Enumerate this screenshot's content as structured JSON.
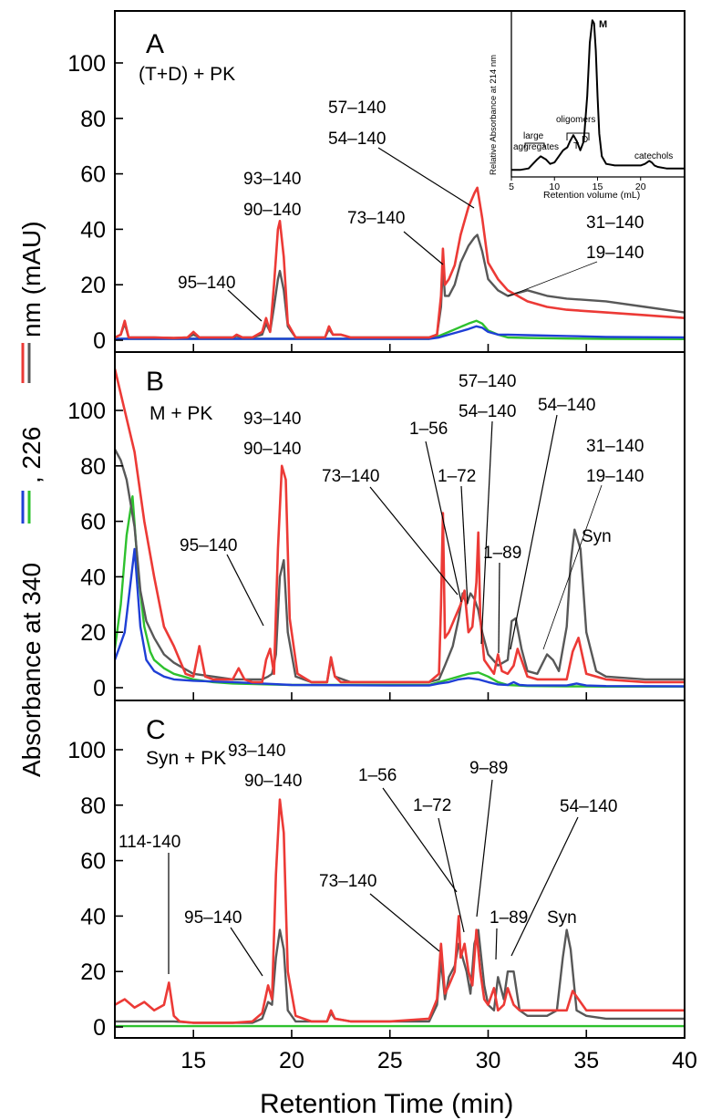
{
  "figure": {
    "ylabel_parts": [
      "Absorbance at 340",
      ", 226",
      " nm (mAU)"
    ],
    "xlabel": "Retention Time (min)",
    "colors": {
      "red": "#ec3a36",
      "black": "#585858",
      "blue": "#1f3fd6",
      "green": "#2ec12e"
    }
  },
  "chart_data": [
    {
      "type": "line",
      "panel": "A",
      "title": "(T+D) + PK",
      "xlim": [
        11,
        40
      ],
      "ylim": [
        0,
        115
      ],
      "xticks": [
        15,
        20,
        25,
        30,
        35,
        40
      ],
      "yticks": [
        0,
        20,
        40,
        60,
        80,
        100
      ],
      "series": [
        {
          "color": "red",
          "x": [
            11,
            11.3,
            11.5,
            11.7,
            12,
            13,
            14,
            14.7,
            15,
            15.3,
            16,
            17,
            17.2,
            17.5,
            18,
            18.5,
            18.7,
            18.9,
            19.1,
            19.3,
            19.4,
            19.6,
            19.8,
            20.2,
            21,
            21.7,
            21.9,
            22.1,
            22.5,
            23,
            25,
            27,
            27.4,
            27.6,
            27.7,
            27.8,
            28,
            28.3,
            28.6,
            29,
            29.3,
            29.45,
            29.7,
            30,
            30.5,
            31,
            31.5,
            32,
            33,
            34,
            36,
            38,
            40
          ],
          "y": [
            1,
            2,
            7,
            1,
            1,
            1,
            0.8,
            1,
            3,
            1,
            1,
            1,
            2,
            1,
            1,
            3,
            8,
            3,
            20,
            40,
            43,
            30,
            6,
            1,
            1,
            1,
            5,
            2,
            2,
            1,
            1,
            1,
            2,
            16,
            33,
            20,
            22,
            27,
            38,
            48,
            53,
            55,
            44,
            28,
            22,
            18,
            16,
            14,
            12,
            11,
            10,
            9,
            8
          ]
        },
        {
          "color": "black",
          "x": [
            11,
            11.3,
            11.5,
            11.7,
            12,
            13,
            14,
            14.7,
            15,
            15.3,
            16,
            17,
            17.2,
            17.5,
            18,
            18.5,
            18.7,
            18.9,
            19.1,
            19.3,
            19.4,
            19.6,
            19.8,
            20.2,
            21,
            21.7,
            21.9,
            22.1,
            22.5,
            23,
            25,
            27,
            27.4,
            27.6,
            27.7,
            27.8,
            28,
            28.3,
            28.6,
            29,
            29.3,
            29.45,
            29.7,
            30,
            30.5,
            31,
            31.5,
            32,
            33,
            34,
            36,
            38,
            40
          ],
          "y": [
            1,
            2,
            6,
            1,
            1,
            1,
            0.8,
            1,
            2,
            1,
            1,
            1,
            1.5,
            1,
            1,
            2,
            6,
            3,
            12,
            22,
            25,
            18,
            5,
            1,
            1,
            1,
            4,
            2,
            2,
            1,
            1,
            1,
            2,
            12,
            27,
            16,
            16,
            20,
            28,
            34,
            37,
            38,
            32,
            22,
            18,
            16,
            17,
            18,
            16,
            15,
            14,
            12,
            10
          ]
        },
        {
          "color": "blue",
          "x": [
            11,
            15,
            20,
            25,
            27,
            27.5,
            28,
            28.5,
            29,
            29.4,
            29.7,
            30,
            30.5,
            31,
            32,
            34,
            36,
            40
          ],
          "y": [
            0.5,
            0.5,
            0.5,
            0.5,
            0.5,
            1,
            2,
            3,
            4,
            5,
            4.5,
            3,
            2,
            2,
            1.8,
            1.5,
            1.2,
            1
          ]
        },
        {
          "color": "green",
          "x": [
            11,
            15,
            20,
            25,
            27,
            27.5,
            28,
            28.5,
            29,
            29.4,
            29.7,
            30,
            30.5,
            31,
            32,
            34,
            36,
            40
          ],
          "y": [
            0.5,
            0.5,
            0.5,
            0.5,
            0.5,
            1.5,
            3,
            4.5,
            6,
            7,
            6,
            3.5,
            2,
            1,
            0.8,
            0.6,
            0.5,
            0.4
          ]
        }
      ],
      "annotations": [
        "95–140",
        "93–140",
        "90–140",
        "73–140",
        "57–140",
        "54–140",
        "31–140",
        "19–140"
      ],
      "inset": {
        "ylabel": "Relative Absorbance at 214 nm",
        "xlabel": "Retention volume (mL)",
        "xlim": [
          5,
          25
        ],
        "ylim": [
          0,
          1.05
        ],
        "xticks": [
          5,
          10,
          15,
          20
        ],
        "labels": {
          "monomer": "M",
          "oligomers": "oligomers",
          "large": "large",
          "aggregates": "aggregates",
          "trimer": "T",
          "dimer": "D",
          "catechols": "catechols"
        },
        "series": [
          {
            "x": [
              5,
              6,
              7,
              7.5,
              8,
              8.4,
              9,
              9.5,
              10,
              10.5,
              11,
              11.5,
              11.8,
              12.2,
              12.6,
              13,
              13.4,
              13.8,
              14.1,
              14.4,
              14.6,
              14.8,
              15,
              15.2,
              15.5,
              16,
              17,
              18,
              19,
              20,
              20.5,
              21,
              21.3,
              21.6,
              22,
              23,
              25
            ],
            "y": [
              0.01,
              0.01,
              0.02,
              0.05,
              0.08,
              0.1,
              0.08,
              0.05,
              0.06,
              0.1,
              0.14,
              0.16,
              0.2,
              0.24,
              0.2,
              0.14,
              0.2,
              0.5,
              0.85,
              1.0,
              0.98,
              0.8,
              0.5,
              0.25,
              0.1,
              0.05,
              0.04,
              0.04,
              0.04,
              0.04,
              0.05,
              0.07,
              0.06,
              0.04,
              0.03,
              0.02,
              0.02
            ]
          }
        ]
      }
    },
    {
      "type": "line",
      "panel": "B",
      "title": "M + PK",
      "xlim": [
        11,
        40
      ],
      "ylim": [
        0,
        115
      ],
      "yticks": [
        0,
        20,
        40,
        60,
        80,
        100
      ],
      "series": [
        {
          "color": "red",
          "x": [
            11,
            11.5,
            12,
            12.5,
            13,
            13.5,
            14,
            14.3,
            14.6,
            15,
            15.3,
            15.6,
            16,
            17,
            17.3,
            17.6,
            18,
            18.5,
            18.7,
            18.9,
            19.1,
            19.3,
            19.5,
            19.7,
            19.9,
            20.3,
            21,
            21.8,
            22,
            22.2,
            22.5,
            23,
            25,
            27,
            27.5,
            27.6,
            27.7,
            27.8,
            28,
            28.3,
            28.6,
            28.8,
            29,
            29.2,
            29.4,
            29.5,
            29.6,
            29.8,
            30,
            30.3,
            30.5,
            30.7,
            31,
            31.3,
            31.5,
            31.8,
            32,
            32.5,
            33,
            33.5,
            34,
            34.3,
            34.6,
            35,
            36,
            38,
            40
          ],
          "y": [
            115,
            100,
            85,
            60,
            40,
            22,
            15,
            10,
            5,
            4,
            15,
            4,
            3,
            3,
            7,
            3,
            2,
            2,
            10,
            14,
            5,
            50,
            80,
            75,
            25,
            5,
            2,
            2,
            11,
            4,
            2,
            2,
            2,
            2,
            5,
            30,
            63,
            18,
            20,
            25,
            30,
            35,
            20,
            22,
            38,
            56,
            25,
            10,
            8,
            5,
            12,
            6,
            5,
            8,
            14,
            8,
            4,
            3,
            3,
            3,
            3,
            13,
            18,
            5,
            3,
            2,
            2
          ]
        },
        {
          "color": "black",
          "x": [
            11,
            11.3,
            11.6,
            12,
            12.3,
            12.6,
            13,
            13.5,
            14,
            14.5,
            15,
            16,
            17,
            18,
            18.5,
            18.8,
            19,
            19.2,
            19.4,
            19.6,
            19.8,
            20.2,
            21,
            21.8,
            22,
            22.2,
            23,
            25,
            27,
            27.5,
            27.8,
            28.2,
            28.5,
            28.7,
            28.9,
            29.1,
            29.3,
            29.5,
            29.7,
            30,
            30.5,
            31,
            31.2,
            31.4,
            31.7,
            32,
            32.5,
            33,
            33.3,
            33.6,
            34,
            34.2,
            34.4,
            34.7,
            35,
            35.5,
            36,
            38,
            40
          ],
          "y": [
            86,
            82,
            75,
            58,
            35,
            24,
            18,
            12,
            9,
            7,
            5,
            4,
            3,
            3,
            3,
            4,
            5,
            12,
            40,
            46,
            20,
            4,
            2,
            2,
            10,
            4,
            2,
            2,
            2,
            3,
            8,
            15,
            25,
            34,
            30,
            34,
            32,
            28,
            20,
            12,
            8,
            10,
            24,
            25,
            14,
            6,
            5,
            12,
            10,
            6,
            22,
            45,
            57,
            50,
            20,
            6,
            4,
            3,
            3
          ]
        },
        {
          "color": "blue",
          "x": [
            11,
            11.5,
            12,
            12.3,
            12.6,
            13,
            13.5,
            14,
            15,
            17,
            20,
            25,
            27,
            27.5,
            28,
            28.5,
            29,
            29.5,
            30,
            30.5,
            31,
            31.3,
            31.6,
            32,
            33,
            34,
            34.5,
            35,
            36,
            40
          ],
          "y": [
            10,
            20,
            50,
            22,
            10,
            6,
            4,
            3,
            2.5,
            2,
            1,
            0.8,
            0.8,
            1.5,
            2,
            3,
            3.5,
            3,
            2,
            1.2,
            1,
            2,
            1,
            0.8,
            0.8,
            0.8,
            1.5,
            0.8,
            0.6,
            0.5
          ]
        },
        {
          "color": "green",
          "x": [
            11,
            11.3,
            11.6,
            11.9,
            12.2,
            12.5,
            12.8,
            13,
            13.5,
            14,
            14.5,
            15,
            16,
            17,
            20,
            25,
            27,
            27.5,
            28,
            28.5,
            29,
            29.5,
            30,
            30.5,
            31,
            31.5,
            32,
            34,
            36,
            40
          ],
          "y": [
            14,
            30,
            55,
            69,
            40,
            22,
            13,
            10,
            7,
            5,
            4,
            3,
            2,
            1.5,
            1,
            1,
            1,
            2,
            3,
            4,
            5,
            5.5,
            4,
            2,
            1,
            0.8,
            0.6,
            0.5,
            0.4,
            0.4
          ]
        }
      ],
      "annotations": [
        "93–140",
        "90–140",
        "95–140",
        "1–56",
        "73–140",
        "1–72",
        "57–140",
        "54–140",
        "54–140",
        "31–140",
        "19–140",
        "1–89",
        "Syn"
      ]
    },
    {
      "type": "line",
      "panel": "C",
      "title": "Syn + PK",
      "xlim": [
        11,
        40
      ],
      "ylim": [
        0,
        115
      ],
      "xticks": [
        15,
        20,
        25,
        30,
        35,
        40
      ],
      "yticks": [
        0,
        20,
        40,
        60,
        80,
        100
      ],
      "series": [
        {
          "color": "red",
          "x": [
            11,
            11.5,
            12,
            12.5,
            13,
            13.5,
            13.75,
            14,
            14.3,
            15,
            16,
            17,
            18,
            18.5,
            18.8,
            19,
            19.2,
            19.4,
            19.6,
            19.8,
            20.2,
            21,
            21.8,
            22,
            22.2,
            23,
            25,
            27,
            27.4,
            27.6,
            27.8,
            28,
            28.3,
            28.5,
            28.6,
            28.8,
            29,
            29.2,
            29.4,
            29.6,
            29.8,
            30,
            30.3,
            30.5,
            30.8,
            31,
            31.3,
            31.6,
            32,
            33,
            34,
            34.3,
            34.6,
            35,
            36,
            38,
            40
          ],
          "y": [
            8,
            10,
            7,
            9,
            6,
            8,
            16,
            4,
            2,
            1.5,
            1.5,
            1.5,
            2,
            5,
            15,
            10,
            55,
            82,
            70,
            20,
            4,
            2,
            2,
            6,
            3,
            2,
            2,
            3,
            10,
            30,
            12,
            15,
            20,
            40,
            25,
            30,
            20,
            15,
            35,
            20,
            10,
            8,
            14,
            6,
            8,
            14,
            8,
            6,
            6,
            6,
            6,
            13,
            10,
            6,
            6,
            6,
            6
          ]
        },
        {
          "color": "black",
          "x": [
            11,
            12,
            13,
            14,
            15,
            17,
            18,
            18.5,
            18.8,
            19,
            19.2,
            19.4,
            19.6,
            19.8,
            20.2,
            21,
            21.8,
            22,
            22.2,
            23,
            25,
            27,
            27.4,
            27.6,
            27.8,
            28,
            28.3,
            28.5,
            28.7,
            28.9,
            29.1,
            29.3,
            29.5,
            29.8,
            30,
            30.3,
            30.5,
            30.8,
            31,
            31.3,
            31.6,
            32,
            33,
            33.5,
            33.8,
            34,
            34.2,
            34.5,
            35,
            36,
            38,
            40
          ],
          "y": [
            2,
            2,
            2,
            2,
            1.5,
            1.5,
            1.5,
            3,
            9,
            8,
            25,
            35,
            28,
            6,
            2,
            2,
            2,
            5,
            3,
            2,
            2,
            2,
            8,
            24,
            10,
            18,
            22,
            30,
            25,
            20,
            12,
            30,
            35,
            15,
            8,
            6,
            18,
            10,
            20,
            20,
            6,
            4,
            4,
            6,
            25,
            35,
            28,
            6,
            4,
            3,
            3,
            3
          ]
        },
        {
          "color": "green",
          "x": [
            11,
            15,
            20,
            25,
            30,
            35,
            40
          ],
          "y": [
            0.3,
            0.3,
            0.3,
            0.3,
            0.3,
            0.3,
            0.3
          ]
        }
      ],
      "annotations": [
        "114-140",
        "95–140",
        "93–140",
        "90–140",
        "73–140",
        "1–56",
        "1–72",
        "9–89",
        "1–89",
        "54–140",
        "Syn"
      ]
    }
  ]
}
